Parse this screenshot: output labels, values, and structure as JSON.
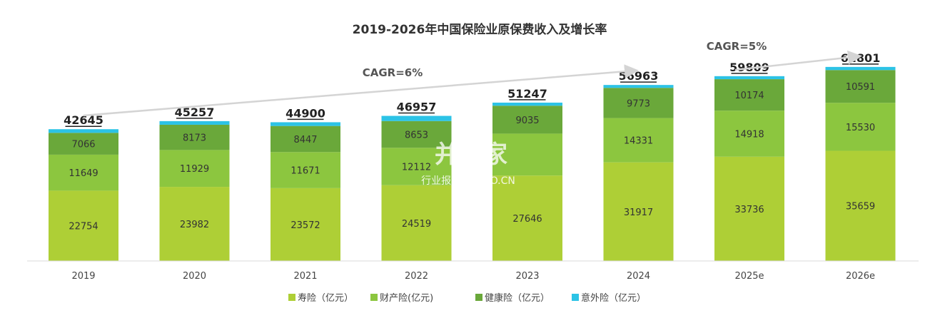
{
  "chart_data": {
    "type": "bar",
    "stacked": true,
    "title": "2019-2026年中国保险业原保费收入及增长率",
    "categories": [
      "2019",
      "2020",
      "2021",
      "2022",
      "2023",
      "2024",
      "2025e",
      "2026e"
    ],
    "series": [
      {
        "name": "寿险（亿元）",
        "color": "#aecf36",
        "values": [
          22754,
          23982,
          23572,
          24519,
          27646,
          31917,
          33736,
          35659
        ]
      },
      {
        "name": "财产险(亿元)",
        "color": "#8cc63f",
        "values": [
          11649,
          11929,
          11671,
          12112,
          13566,
          14331,
          14918,
          15530
        ]
      },
      {
        "name": "健康险（亿元）",
        "color": "#6aa83a",
        "values": [
          7066,
          8173,
          8447,
          8653,
          9035,
          9773,
          10174,
          10591
        ]
      },
      {
        "name": "意外险（亿元）",
        "color": "#2cc3e6",
        "values": [
          1175,
          1173,
          1210,
          1673,
          1000,
          942,
          981,
          1021
        ]
      }
    ],
    "segment_labels": {
      "寿险（亿元）": [
        "22754",
        "23982",
        "23572",
        "24519",
        "27646",
        "31917",
        "33736",
        "35659"
      ],
      "财产险(亿元)": [
        "11649",
        "11929",
        "11671",
        "12112",
        "",
        "14331",
        "14918",
        "15530"
      ],
      "健康险（亿元）": [
        "7066",
        "8173",
        "8447",
        "8653",
        "9035",
        "9773",
        "10174",
        "10591"
      ]
    },
    "totals": [
      "42645",
      "45257",
      "44900",
      "46957",
      "51247",
      "56963",
      "59809",
      "62801"
    ],
    "ylim": [
      0,
      66000
    ],
    "grid": false,
    "legend_position": "bottom",
    "annotations": [
      {
        "text": "CAGR=6%",
        "from_category": "2019",
        "to_category": "2024"
      },
      {
        "text": "CAGR=5%",
        "from_category": "2024",
        "to_category": "2026e"
      }
    ]
  },
  "watermark": {
    "main": "并购家",
    "sub": "行业报告 IPOIPO.CN"
  }
}
